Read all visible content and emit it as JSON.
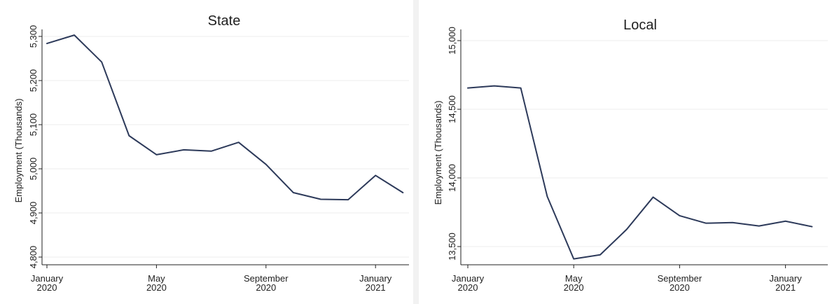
{
  "chart_data": [
    {
      "type": "line",
      "title": "State",
      "ylabel": "Employment (Thousands)",
      "xlabel": "",
      "x": [
        "2020-01",
        "2020-02",
        "2020-03",
        "2020-04",
        "2020-05",
        "2020-06",
        "2020-07",
        "2020-08",
        "2020-09",
        "2020-10",
        "2020-11",
        "2020-12",
        "2021-01",
        "2021-02"
      ],
      "xlim": [
        "2020-01",
        "2021-02"
      ],
      "xticks": [
        {
          "x": "2020-01",
          "label": [
            "January",
            "2020"
          ]
        },
        {
          "x": "2020-05",
          "label": [
            "May",
            "2020"
          ]
        },
        {
          "x": "2020-09",
          "label": [
            "September",
            "2020"
          ]
        },
        {
          "x": "2021-01",
          "label": [
            "January",
            "2021"
          ]
        }
      ],
      "ylim": [
        4800,
        5300
      ],
      "yticks": [
        {
          "y": 4800,
          "label": "4,800"
        },
        {
          "y": 4900,
          "label": "4,900"
        },
        {
          "y": 5000,
          "label": "5,000"
        },
        {
          "y": 5100,
          "label": "5,100"
        },
        {
          "y": 5200,
          "label": "5,200"
        },
        {
          "y": 5300,
          "label": "5,300"
        }
      ],
      "series": [
        {
          "values": [
            5284,
            5303,
            5242,
            5075,
            5032,
            5043,
            5040,
            5060,
            5010,
            4946,
            4931,
            4930,
            4985,
            4946
          ],
          "color": "#2d3a5a"
        }
      ],
      "grid": true,
      "legend": "none"
    },
    {
      "type": "line",
      "title": "Local",
      "ylabel": "Employment (Thousands)",
      "xlabel": "",
      "x": [
        "2020-01",
        "2020-02",
        "2020-03",
        "2020-04",
        "2020-05",
        "2020-06",
        "2020-07",
        "2020-08",
        "2020-09",
        "2020-10",
        "2020-11",
        "2020-12",
        "2021-01",
        "2021-02"
      ],
      "xlim": [
        "2020-01",
        "2021-02"
      ],
      "xticks": [
        {
          "x": "2020-01",
          "label": [
            "January",
            "2020"
          ]
        },
        {
          "x": "2020-05",
          "label": [
            "May",
            "2020"
          ]
        },
        {
          "x": "2020-09",
          "label": [
            "September",
            "2020"
          ]
        },
        {
          "x": "2021-01",
          "label": [
            "January",
            "2021"
          ]
        }
      ],
      "ylim": [
        13500,
        15000
      ],
      "yticks": [
        {
          "y": 13500,
          "label": "13,500"
        },
        {
          "y": 14000,
          "label": "14,000"
        },
        {
          "y": 14500,
          "label": "14,500"
        },
        {
          "y": 15000,
          "label": "15,000"
        }
      ],
      "series": [
        {
          "values": [
            14655,
            14670,
            14655,
            13865,
            13410,
            13440,
            13625,
            13860,
            13725,
            13670,
            13675,
            13650,
            13685,
            13645
          ],
          "color": "#2d3a5a"
        }
      ],
      "grid": true,
      "legend": "none"
    }
  ]
}
